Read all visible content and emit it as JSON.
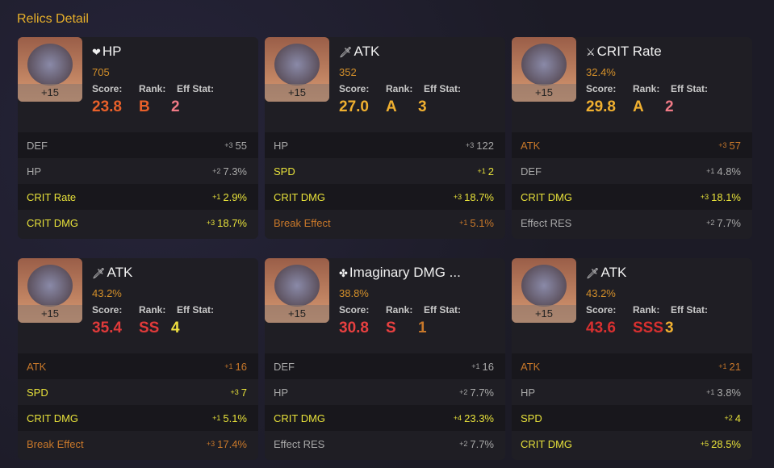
{
  "title": "Relics Detail",
  "labels": {
    "score": "Score:",
    "rank": "Rank:",
    "eff": "Eff Stat:"
  },
  "colors": {
    "effective": "#e6e03a",
    "normal": "#a8a8a8",
    "break": "#c8782a"
  },
  "relics": [
    {
      "level": "+15",
      "icon": "heart-icon",
      "glyph": "❤",
      "main": "HP",
      "main_value": "705",
      "score": "23.8",
      "rank": "B",
      "eff": "2",
      "score_color": "#e8602a",
      "eff_color": "#f07a86",
      "stats": [
        {
          "name": "DEF",
          "count": "+3",
          "value": "55",
          "type": "normal"
        },
        {
          "name": "HP",
          "count": "+2",
          "value": "7.3%",
          "type": "normal"
        },
        {
          "name": "CRIT Rate",
          "count": "+1",
          "value": "2.9%",
          "type": "effective"
        },
        {
          "name": "CRIT DMG",
          "count": "+3",
          "value": "18.7%",
          "type": "effective"
        }
      ]
    },
    {
      "level": "+15",
      "icon": "sword-icon",
      "glyph": "🗡",
      "main": "ATK",
      "main_value": "352",
      "score": "27.0",
      "rank": "A",
      "eff": "3",
      "score_color": "#f0b030",
      "eff_color": "#f0b030",
      "stats": [
        {
          "name": "HP",
          "count": "+3",
          "value": "122",
          "type": "normal"
        },
        {
          "name": "SPD",
          "count": "+1",
          "value": "2",
          "type": "effective"
        },
        {
          "name": "CRIT DMG",
          "count": "+3",
          "value": "18.7%",
          "type": "effective"
        },
        {
          "name": "Break Effect",
          "count": "+1",
          "value": "5.1%",
          "type": "break"
        }
      ]
    },
    {
      "level": "+15",
      "icon": "crit-icon",
      "glyph": "⚔",
      "main": "CRIT Rate",
      "main_value": "32.4%",
      "score": "29.8",
      "rank": "A",
      "eff": "2",
      "score_color": "#f0b030",
      "eff_color": "#f07a86",
      "stats": [
        {
          "name": "ATK",
          "count": "+3",
          "value": "57",
          "type": "break"
        },
        {
          "name": "DEF",
          "count": "+1",
          "value": "4.8%",
          "type": "normal"
        },
        {
          "name": "CRIT DMG",
          "count": "+3",
          "value": "18.1%",
          "type": "effective"
        },
        {
          "name": "Effect RES",
          "count": "+2",
          "value": "7.7%",
          "type": "normal"
        }
      ]
    },
    {
      "level": "+15",
      "icon": "sword-icon",
      "glyph": "🗡",
      "main": "ATK",
      "main_value": "43.2%",
      "score": "35.4",
      "rank": "SS",
      "eff": "4",
      "score_color": "#e03a3a",
      "eff_color": "#f0e040",
      "stats": [
        {
          "name": "ATK",
          "count": "+1",
          "value": "16",
          "type": "break"
        },
        {
          "name": "SPD",
          "count": "+3",
          "value": "7",
          "type": "effective"
        },
        {
          "name": "CRIT DMG",
          "count": "+1",
          "value": "5.1%",
          "type": "effective"
        },
        {
          "name": "Break Effect",
          "count": "+3",
          "value": "17.4%",
          "type": "break"
        }
      ]
    },
    {
      "level": "+15",
      "icon": "imaginary-icon",
      "glyph": "✤",
      "main": "Imaginary DMG ...",
      "main_value": "38.8%",
      "score": "30.8",
      "rank": "S",
      "eff": "1",
      "score_color": "#e84040",
      "eff_color": "#c8782a",
      "stats": [
        {
          "name": "DEF",
          "count": "+1",
          "value": "16",
          "type": "normal"
        },
        {
          "name": "HP",
          "count": "+2",
          "value": "7.7%",
          "type": "normal"
        },
        {
          "name": "CRIT DMG",
          "count": "+4",
          "value": "23.3%",
          "type": "effective"
        },
        {
          "name": "Effect RES",
          "count": "+2",
          "value": "7.7%",
          "type": "normal"
        }
      ]
    },
    {
      "level": "+15",
      "icon": "sword-icon",
      "glyph": "🗡",
      "main": "ATK",
      "main_value": "43.2%",
      "score": "43.6",
      "rank": "SSS",
      "eff": "3",
      "score_color": "#d83030",
      "eff_color": "#f0b030",
      "stats": [
        {
          "name": "ATK",
          "count": "+1",
          "value": "21",
          "type": "break"
        },
        {
          "name": "HP",
          "count": "+1",
          "value": "3.8%",
          "type": "normal"
        },
        {
          "name": "SPD",
          "count": "+2",
          "value": "4",
          "type": "effective"
        },
        {
          "name": "CRIT DMG",
          "count": "+5",
          "value": "28.5%",
          "type": "effective"
        }
      ]
    }
  ]
}
